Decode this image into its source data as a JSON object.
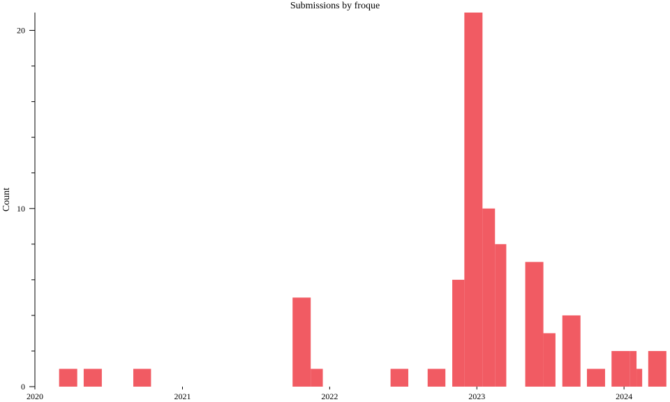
{
  "chart_data": {
    "type": "bar",
    "title": "Submissions by froque",
    "xlabel": "",
    "ylabel": "Count",
    "bar_color": "#f15b63",
    "xlim": [
      "2020-01-01",
      "2024-04-24"
    ],
    "ylim": [
      0,
      21
    ],
    "x_ticks": [
      {
        "label": "2020",
        "date": "2020-01-01"
      },
      {
        "label": "2021",
        "date": "2021-01-01"
      },
      {
        "label": "2022",
        "date": "2022-01-01"
      },
      {
        "label": "2023",
        "date": "2023-01-01"
      },
      {
        "label": "2024",
        "date": "2024-01-01"
      }
    ],
    "y_ticks_major": [
      0,
      10,
      20
    ],
    "y_ticks_minor": [
      2,
      4,
      6,
      8,
      12,
      14,
      16,
      18
    ],
    "grid": false,
    "legend": "none",
    "bars": [
      {
        "start": "2020-03-01",
        "end": "2020-04-15",
        "value": 1
      },
      {
        "start": "2020-05-01",
        "end": "2020-06-15",
        "value": 1
      },
      {
        "start": "2020-09-01",
        "end": "2020-10-15",
        "value": 1
      },
      {
        "start": "2021-10-01",
        "end": "2021-11-15",
        "value": 5
      },
      {
        "start": "2021-11-15",
        "end": "2021-12-15",
        "value": 1
      },
      {
        "start": "2022-06-01",
        "end": "2022-07-15",
        "value": 1
      },
      {
        "start": "2022-09-01",
        "end": "2022-10-15",
        "value": 1
      },
      {
        "start": "2022-11-01",
        "end": "2022-12-01",
        "value": 6
      },
      {
        "start": "2022-12-01",
        "end": "2023-01-15",
        "value": 21
      },
      {
        "start": "2023-01-15",
        "end": "2023-02-15",
        "value": 10
      },
      {
        "start": "2023-02-15",
        "end": "2023-03-15",
        "value": 8
      },
      {
        "start": "2023-05-01",
        "end": "2023-06-15",
        "value": 7
      },
      {
        "start": "2023-06-15",
        "end": "2023-07-15",
        "value": 3
      },
      {
        "start": "2023-08-01",
        "end": "2023-09-15",
        "value": 4
      },
      {
        "start": "2023-10-01",
        "end": "2023-11-15",
        "value": 1
      },
      {
        "start": "2023-12-01",
        "end": "2024-01-15",
        "value": 2
      },
      {
        "start": "2024-01-15",
        "end": "2024-02-01",
        "value": 2
      },
      {
        "start": "2024-02-01",
        "end": "2024-02-15",
        "value": 1
      },
      {
        "start": "2024-03-01",
        "end": "2024-04-15",
        "value": 2
      }
    ]
  }
}
